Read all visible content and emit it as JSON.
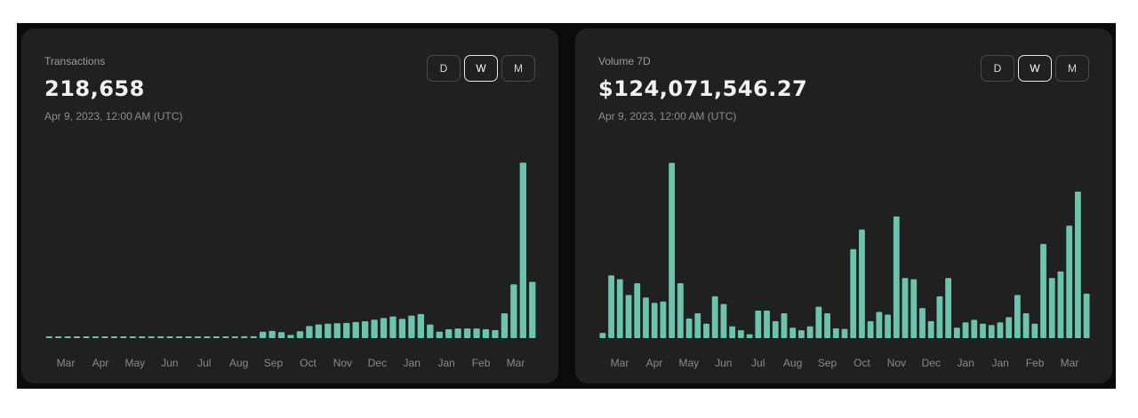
{
  "colors": {
    "bar": "#6cc4ad",
    "card_bg": "#202020",
    "frame_bg": "#0b0b0b"
  },
  "cards": [
    {
      "label": "Transactions",
      "value": "218,658",
      "date": "Apr 9, 2023, 12:00 AM (UTC)",
      "toggle": [
        {
          "label": "D",
          "active": false
        },
        {
          "label": "W",
          "active": true
        },
        {
          "label": "M",
          "active": false
        }
      ]
    },
    {
      "label": "Volume 7D",
      "value": "$124,071,546.27",
      "date": "Apr 9, 2023, 12:00 AM (UTC)",
      "toggle": [
        {
          "label": "D",
          "active": false
        },
        {
          "label": "W",
          "active": true
        },
        {
          "label": "M",
          "active": false
        }
      ]
    }
  ],
  "chart_data": [
    {
      "type": "bar",
      "title": "Transactions",
      "xlabel": "",
      "ylabel": "",
      "tick_labels": [
        "Mar",
        "Apr",
        "May",
        "Jun",
        "Jul",
        "Aug",
        "Sep",
        "Oct",
        "Nov",
        "Dec",
        "Jan",
        "Jan",
        "Feb",
        "Mar"
      ],
      "grid": false,
      "legend": "none",
      "ylim": [
        0,
        220000
      ],
      "values": [
        1800,
        2000,
        1900,
        1700,
        1600,
        1700,
        1600,
        1700,
        1800,
        1800,
        1700,
        1500,
        1700,
        1800,
        1600,
        1700,
        1800,
        2000,
        2100,
        2200,
        2000,
        2300,
        2400,
        8000,
        9000,
        7500,
        4000,
        8500,
        15000,
        17000,
        18000,
        18500,
        19000,
        20000,
        21000,
        23000,
        25000,
        27000,
        24000,
        28000,
        30000,
        17000,
        8000,
        11000,
        12000,
        12000,
        12000,
        11000,
        10000,
        31000,
        67000,
        218658,
        70000
      ]
    },
    {
      "type": "bar",
      "title": "Volume 7D",
      "xlabel": "",
      "ylabel": "",
      "tick_labels": [
        "Mar",
        "Apr",
        "May",
        "Jun",
        "Jul",
        "Aug",
        "Sep",
        "Oct",
        "Nov",
        "Dec",
        "Jan",
        "Jan",
        "Feb",
        "Mar"
      ],
      "grid": false,
      "legend": "none",
      "ylim": [
        0,
        135000000
      ],
      "values": [
        4000000,
        48000000,
        45000000,
        33000000,
        42000000,
        31000000,
        27000000,
        28000000,
        134000000,
        42000000,
        15000000,
        19000000,
        11000000,
        32000000,
        26000000,
        9000000,
        6000000,
        3000000,
        21000000,
        21000000,
        13000000,
        19000000,
        8000000,
        6000000,
        9000000,
        24000000,
        19000000,
        7500000,
        7000000,
        68000000,
        83000000,
        13000000,
        20000000,
        18000000,
        93000000,
        46000000,
        45000000,
        23000000,
        13000000,
        32000000,
        46000000,
        8000000,
        12000000,
        14000000,
        11000000,
        10000000,
        12000000,
        16000000,
        33000000,
        19000000,
        11000000,
        72000000,
        46000000,
        51000000,
        86000000,
        112000000,
        34000000
      ]
    }
  ]
}
